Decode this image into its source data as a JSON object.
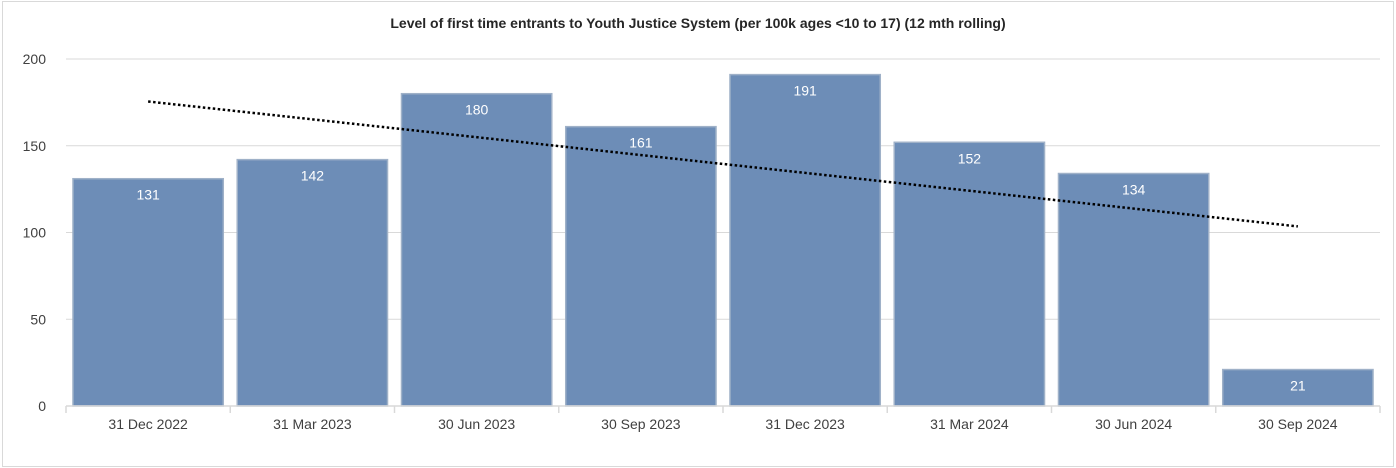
{
  "chart_data": {
    "type": "bar",
    "title": "Level of first time entrants to Youth Justice System (per 100k ages <10 to 17) (12 mth rolling)",
    "categories": [
      "31 Dec 2022",
      "31 Mar 2023",
      "30 Jun 2023",
      "30 Sep 2023",
      "31 Dec 2023",
      "31 Mar 2024",
      "30 Jun 2024",
      "30 Sep 2024"
    ],
    "values": [
      131,
      142,
      180,
      161,
      191,
      152,
      134,
      21
    ],
    "ylim": [
      0,
      200
    ],
    "yticks": [
      0,
      50,
      100,
      150,
      200
    ],
    "grid": true,
    "trendline": {
      "type": "linear",
      "style": "dotted",
      "start": 175.5,
      "end": 103.5,
      "color": "#000000"
    },
    "colors": {
      "bar": "#6d8db7",
      "bar_border": "#9fb1c8",
      "grid": "#d9d9d9"
    }
  }
}
